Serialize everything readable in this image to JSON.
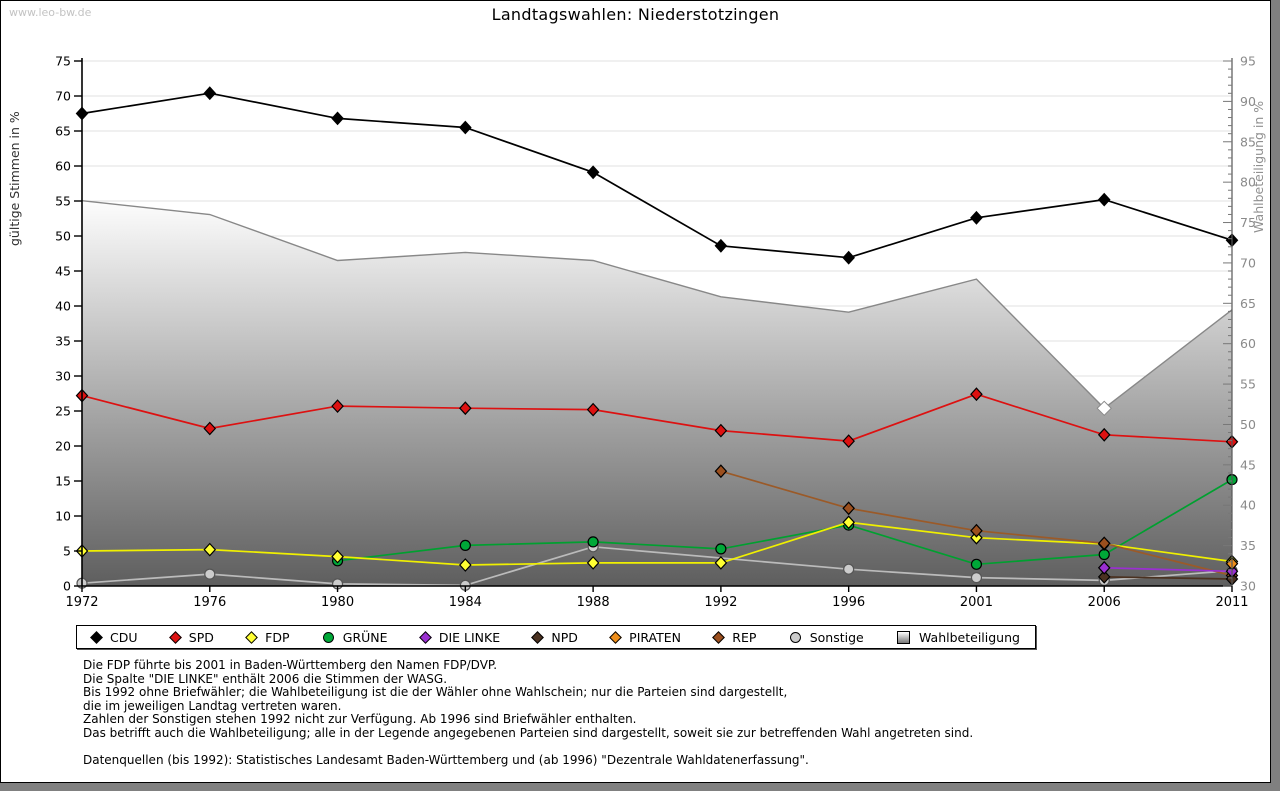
{
  "watermark": "www.leo-bw.de",
  "title": "Landtagswahlen: Niederstotzingen",
  "chart_data": {
    "type": "line",
    "categories": [
      "1972",
      "1976",
      "1980",
      "1984",
      "1988",
      "1992",
      "1996",
      "2001",
      "2006",
      "2011"
    ],
    "left_axis": {
      "label": "gültige Stimmen in %",
      "range": [
        0,
        75
      ],
      "tick_step": 5
    },
    "right_axis": {
      "label": "Wahlbeteiligung in %",
      "range": [
        30,
        95
      ],
      "tick_step": 5,
      "minor_step": 1
    },
    "grid": "horizontal",
    "series": [
      {
        "name": "CDU",
        "color": "#000000",
        "fill": "#000000",
        "shape": "diamond",
        "axis": "left",
        "values": [
          67.5,
          70.4,
          66.8,
          65.5,
          59.1,
          48.6,
          46.9,
          52.6,
          55.2,
          49.4
        ]
      },
      {
        "name": "SPD",
        "color": "#dd1111",
        "fill": "#dd1111",
        "shape": "diamond",
        "axis": "left",
        "values": [
          27.2,
          22.5,
          25.7,
          25.4,
          25.2,
          22.2,
          20.7,
          27.4,
          21.6,
          20.6
        ]
      },
      {
        "name": "FDP",
        "color": "#f0f000",
        "fill": "#ffff33",
        "shape": "diamond",
        "axis": "left",
        "values": [
          5.0,
          5.2,
          4.2,
          3.0,
          3.3,
          3.3,
          9.1,
          6.9,
          6.0,
          3.5
        ]
      },
      {
        "name": "GRÜNE",
        "color": "#00a030",
        "fill": "#00a838",
        "shape": "circle",
        "axis": "left",
        "values": [
          null,
          null,
          3.6,
          5.8,
          6.3,
          5.3,
          8.7,
          3.1,
          4.5,
          15.2
        ]
      },
      {
        "name": "DIE LINKE",
        "color": "#9a2fd1",
        "fill": "#9a2fd1",
        "shape": "diamond",
        "axis": "left",
        "values": [
          null,
          null,
          null,
          null,
          null,
          null,
          null,
          null,
          2.6,
          2.1
        ]
      },
      {
        "name": "NPD",
        "color": "#4a3120",
        "fill": "#4a3120",
        "shape": "diamond",
        "axis": "left",
        "values": [
          null,
          null,
          null,
          null,
          null,
          null,
          null,
          null,
          1.3,
          1.0
        ]
      },
      {
        "name": "PIRATEN",
        "color": "#ef8e1a",
        "fill": "#ef8e1a",
        "shape": "diamond",
        "axis": "left",
        "values": [
          null,
          null,
          null,
          null,
          null,
          null,
          null,
          null,
          null,
          3.2
        ]
      },
      {
        "name": "REP",
        "color": "#9b5a28",
        "fill": "#9b4f1e",
        "shape": "diamond",
        "axis": "left",
        "values": [
          null,
          null,
          null,
          null,
          null,
          16.4,
          11.1,
          7.9,
          6.1,
          1.5
        ]
      },
      {
        "name": "Sonstige",
        "color": "#bbbbbb",
        "fill": "#cccccc",
        "shape": "circle",
        "axis": "left",
        "marker_stroke": "#555555",
        "values": [
          0.4,
          1.7,
          0.3,
          0.1,
          5.6,
          null,
          2.4,
          1.2,
          0.8,
          2.2
        ]
      }
    ],
    "area_series": {
      "name": "Wahlbeteiligung",
      "axis": "right",
      "stroke": "#888888",
      "gradient_top": "#ffffff",
      "gradient_bottom": "#5e5e5e",
      "marker_year": "2006",
      "values": [
        77.7,
        76.0,
        70.3,
        71.3,
        70.3,
        65.8,
        63.9,
        68.0,
        52.0,
        64.2
      ]
    }
  },
  "legend": [
    {
      "key": "cdu",
      "label": "CDU",
      "color": "#000000",
      "shape": "diamond"
    },
    {
      "key": "spd",
      "label": "SPD",
      "color": "#dd1111",
      "shape": "diamond"
    },
    {
      "key": "fdp",
      "label": "FDP",
      "color": "#ffff33",
      "shape": "diamond"
    },
    {
      "key": "gruene",
      "label": "GRÜNE",
      "color": "#00a838",
      "shape": "circle"
    },
    {
      "key": "die-linke",
      "label": "DIE LINKE",
      "color": "#9a2fd1",
      "shape": "diamond"
    },
    {
      "key": "npd",
      "label": "NPD",
      "color": "#4a3120",
      "shape": "diamond"
    },
    {
      "key": "piraten",
      "label": "PIRATEN",
      "color": "#ef8e1a",
      "shape": "diamond"
    },
    {
      "key": "rep",
      "label": "REP",
      "color": "#9b4f1e",
      "shape": "diamond"
    },
    {
      "key": "sonstige",
      "label": "Sonstige",
      "color": "#cccccc",
      "shape": "circle"
    },
    {
      "key": "wahlbeteiligung",
      "label": "Wahlbeteiligung",
      "color": "#bbbbbb",
      "shape": "square"
    }
  ],
  "footnotes": [
    "Die FDP führte bis 2001 in Baden-Württemberg den Namen FDP/DVP.",
    "Die Spalte \"DIE LINKE\" enthält 2006 die Stimmen der WASG.",
    "Bis 1992 ohne Briefwähler; die Wahlbeteiligung ist die der Wähler ohne Wahlschein; nur die Parteien sind dargestellt,",
    "die im jeweiligen Landtag vertreten waren.",
    "Zahlen der Sonstigen stehen 1992 nicht zur Verfügung. Ab 1996 sind Briefwähler enthalten.",
    "Das betrifft auch die Wahlbeteiligung; alle in der Legende angegebenen Parteien sind dargestellt, soweit sie zur betreffenden Wahl angetreten sind.",
    "",
    "Datenquellen (bis 1992): Statistisches Landesamt Baden-Württemberg und (ab 1996) \"Dezentrale Wahldatenerfassung\"."
  ]
}
